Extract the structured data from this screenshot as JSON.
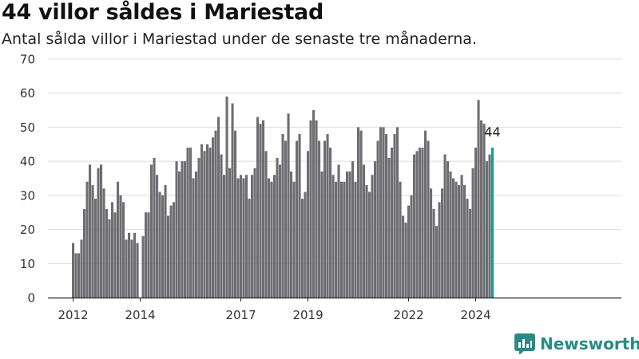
{
  "header": {
    "title": "44 villor såldes i Mariestad",
    "subtitle": "Antal sålda villor i Mariestad under de senaste tre månaderna."
  },
  "brand": {
    "name": "Newsworthy",
    "color": "#2a8a86"
  },
  "colors": {
    "bar": "#6e6d72",
    "highlight": "#1a9a92"
  },
  "chart_data": {
    "type": "bar",
    "title": "44 villor såldes i Mariestad",
    "subtitle": "Antal sålda villor i Mariestad under de senaste tre månaderna.",
    "xlabel": "",
    "ylabel": "",
    "ylim": [
      0,
      70
    ],
    "yticks": [
      0,
      10,
      20,
      30,
      40,
      50,
      60,
      70
    ],
    "xticks": [
      "2012",
      "2014",
      "2017",
      "2019",
      "2022",
      "2024"
    ],
    "x_start": "2012-01",
    "frequency": "monthly",
    "grid": true,
    "last_label": "44",
    "values": [
      16,
      13,
      13,
      17,
      26,
      34,
      39,
      33,
      29,
      38,
      39,
      32,
      26,
      23,
      28,
      25,
      34,
      30,
      28,
      17,
      19,
      17,
      19,
      16,
      null,
      18,
      25,
      25,
      39,
      41,
      36,
      31,
      30,
      33,
      24,
      27,
      28,
      40,
      37,
      40,
      40,
      44,
      44,
      35,
      37,
      41,
      45,
      43,
      45,
      44,
      47,
      49,
      53,
      42,
      36,
      59,
      38,
      57,
      49,
      35,
      36,
      35,
      36,
      29,
      36,
      38,
      53,
      51,
      52,
      43,
      35,
      34,
      36,
      41,
      39,
      48,
      46,
      54,
      37,
      34,
      46,
      48,
      29,
      31,
      43,
      52,
      55,
      52,
      46,
      37,
      46,
      48,
      44,
      36,
      34,
      39,
      34,
      34,
      37,
      37,
      40,
      34,
      50,
      49,
      39,
      33,
      31,
      36,
      40,
      46,
      50,
      50,
      48,
      41,
      44,
      48,
      50,
      34,
      24,
      22,
      27,
      30,
      42,
      43,
      44,
      44,
      49,
      46,
      32,
      26,
      21,
      28,
      32,
      42,
      40,
      37,
      35,
      34,
      33,
      36,
      33,
      29,
      26,
      38,
      44,
      58,
      52,
      51,
      40,
      42,
      44
    ]
  }
}
